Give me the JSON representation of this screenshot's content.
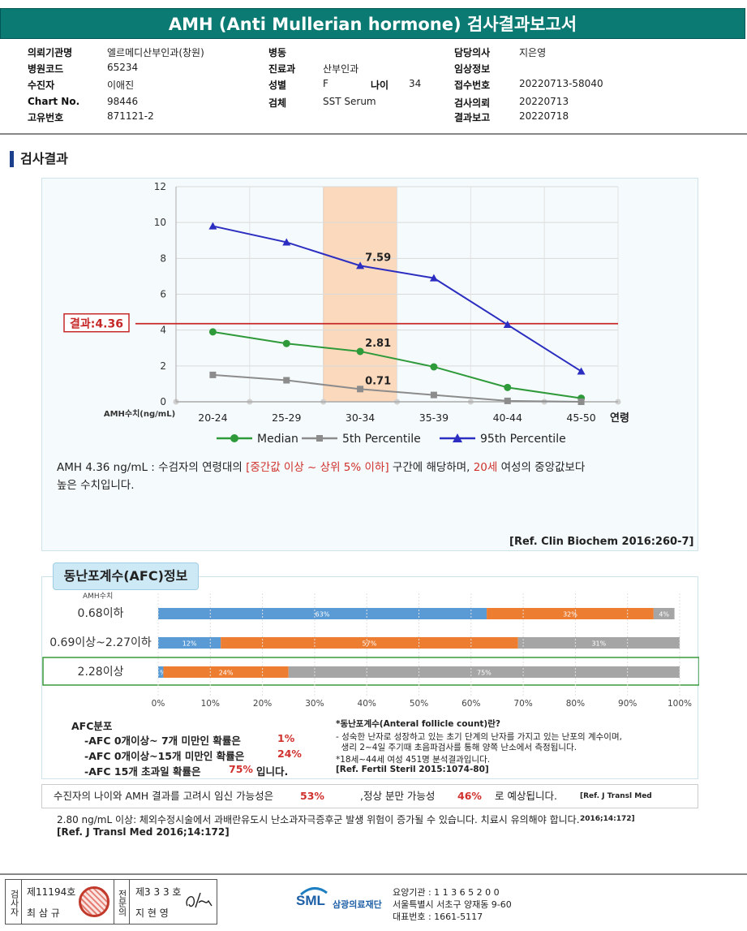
{
  "title": "AMH (Anti Mullerian hormone) 검사결과보고서",
  "info": {
    "col1": [
      {
        "label": "의뢰기관명",
        "value": "엘르메디산부인과(창원)"
      },
      {
        "label": "병원코드",
        "value": "65234"
      },
      {
        "label": "수진자",
        "value": "이애진"
      },
      {
        "label": "Chart No.",
        "value": "98446"
      },
      {
        "label": "고유번호",
        "value": "871121-2"
      }
    ],
    "col2": [
      {
        "label": "병동",
        "value": ""
      },
      {
        "label": "진료과",
        "value": "산부인과"
      },
      {
        "label": "성별",
        "value": "F"
      },
      {
        "label": "검체",
        "value": "SST Serum"
      }
    ],
    "age_label": "나이",
    "age_value": "34",
    "col3": [
      {
        "label": "담당의사",
        "value": "지은영"
      },
      {
        "label": "임상정보",
        "value": ""
      },
      {
        "label": "접수번호",
        "value": "20220713-58040"
      },
      {
        "label": "검사의뢰",
        "value": "20220713"
      },
      {
        "label": "결과보고",
        "value": "20220718"
      }
    ]
  },
  "section_title": "검사결과",
  "chart_data": {
    "type": "line",
    "categories": [
      "20-24",
      "25-29",
      "30-34",
      "35-39",
      "40-44",
      "45-50"
    ],
    "xlabel": "연령",
    "ylabel": "AMH수치(ng/mL)",
    "ylim": [
      0,
      12
    ],
    "yticks": [
      0,
      2,
      4,
      6,
      8,
      10,
      12
    ],
    "highlight_category": "30-34",
    "result_line": {
      "value": 4.36,
      "label": "결과:4.36"
    },
    "series": [
      {
        "name": "Median",
        "values": [
          3.9,
          3.25,
          2.81,
          1.95,
          0.8,
          0.2
        ],
        "color": "#2e9a3a",
        "marker": "circle"
      },
      {
        "name": "5th Percentile",
        "values": [
          1.5,
          1.2,
          0.71,
          0.38,
          0.05,
          0.0
        ],
        "color": "#8c8c8c",
        "marker": "square"
      },
      {
        "name": "95th Percentile",
        "values": [
          9.8,
          8.9,
          7.59,
          6.9,
          4.3,
          1.7
        ],
        "color": "#2b2ec0",
        "marker": "triangle"
      }
    ],
    "data_labels": [
      {
        "series": "95th Percentile",
        "category": "30-34",
        "text": "7.59"
      },
      {
        "series": "Median",
        "category": "30-34",
        "text": "2.81"
      },
      {
        "series": "5th Percentile",
        "category": "30-34",
        "text": "0.71"
      }
    ],
    "legend_position": "bottom"
  },
  "result_text": {
    "part1": "AMH  4.36 ng/mL : 수검자의 연령대의 ",
    "red1": "[중간값 이상 ~ 상위 5% 이하]",
    "part2": " 구간에 해당하며, ",
    "red2": "20세",
    "part3": " 여성의 중앙값보다",
    "line2": "높은 수치입니다."
  },
  "ref1": "[Ref. Clin Biochem 2016:260-7]",
  "afc": {
    "title": "동난포계수(AFC)정보",
    "axis_label": "AMH수치",
    "colors": {
      "low": "#5b9bd5",
      "mid": "#ed7d31",
      "high": "#a5a5a5",
      "highlight": "#3a9a3a"
    },
    "rows": [
      {
        "label": "0.68이하",
        "segments": [
          63,
          32,
          4
        ],
        "texts": [
          "63%",
          "32%",
          "4%"
        ]
      },
      {
        "label": "0.69이상~2.27이하",
        "segments": [
          12,
          57,
          31
        ],
        "texts": [
          "12%",
          "57%",
          "31%"
        ]
      },
      {
        "label": "2.28이상",
        "segments": [
          1,
          24,
          75
        ],
        "texts": [
          "1%",
          "24%",
          "75%"
        ],
        "highlight": true
      }
    ],
    "ticks": [
      "0%",
      "10%",
      "20%",
      "30%",
      "40%",
      "50%",
      "60%",
      "70%",
      "80%",
      "90%",
      "100%"
    ],
    "dist_title": "AFC분포",
    "dist_lines": [
      {
        "text": "-AFC  0개이상~ 7개 미만인 확률은",
        "value": "1%"
      },
      {
        "text": "-AFC  0개이상~15개 미만인 확률은",
        "value": "24%"
      },
      {
        "text": "-AFC  15개 초과일 확률은",
        "value": "75%",
        "suffix": "입니다."
      }
    ],
    "note_lines": [
      "*동난포계수(Anteral follicle count)란?",
      "- 성숙한 난자로 성장하고 있는 초기 단계의 난자를 가지고 있는 난포의 계수이며,",
      "  생리 2~4일 주기때 초음파검사를 통해 양쪽 난소에서 측정됩니다.",
      "*18세~44세 여성 451명 분석결과입니다.",
      "[Ref. Fertil Steril 2015:1074-80]"
    ]
  },
  "probability": {
    "part1": "수진자의 나이와 AMH 결과를 고려시 임신 가능성은",
    "value1": "53%",
    "part2": ",정상 분만 가능성",
    "value2": "46%",
    "part3": "로 예상됩니다.",
    "ref": "[Ref. J Transl Med 2016;14:172]"
  },
  "warning": "2.80  ng/mL  이상: 체외수정시술에서 과배란유도시 난소과자극증후군 발생 위험이 증가될 수 있습니다. 치료시 유의해야 합니다.",
  "ref4": "[Ref. J Transl Med 2016;14:172]",
  "footer": {
    "inspector_label": "검사자",
    "inspector_no": "제11194호",
    "inspector_name": "최 삼 규",
    "specialist_label": "전문의",
    "specialist_no": "제3 3 3 호",
    "specialist_name": "지 현 영",
    "logo_text": "SML",
    "logo_org": "삼광의료재단",
    "org_line1": "요양기관 : 1 1 3 6 5 2 0 0",
    "org_line2": "서울특별시 서초구 양재동 9-60",
    "org_line3": "대표번호 : 1661-5117"
  }
}
